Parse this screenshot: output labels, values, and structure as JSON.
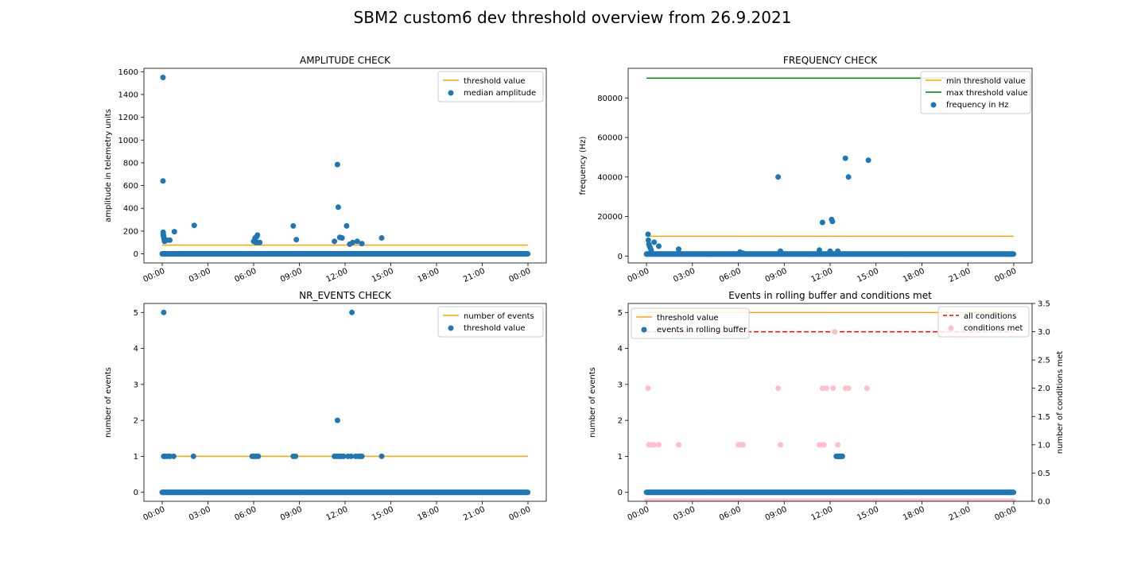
{
  "figure": {
    "title": "SBM2 custom6 dev threshold overview from 26.9.2021"
  },
  "colors": {
    "points": "#1f77b4",
    "threshold": "#ffa500",
    "max_threshold": "#008000",
    "all_conditions": "#ff0000",
    "conditions_met": "#ffc0cb"
  },
  "chart_data": [
    {
      "id": "amplitude",
      "type": "scatter",
      "title": "AMPLITUDE CHECK",
      "xlabel": "",
      "ylabel": "amplitude in telemetry units",
      "x_unit": "hours from 00:00 on 26.9.2021",
      "xlim": [
        -1.2,
        25.2
      ],
      "ylim": [
        -80,
        1630
      ],
      "yticks": [
        0,
        200,
        400,
        600,
        800,
        1000,
        1200,
        1400,
        1600
      ],
      "xticks": [
        "00:00",
        "03:00",
        "06:00",
        "09:00",
        "12:00",
        "15:00",
        "18:00",
        "21:00",
        "00:00"
      ],
      "legend": "upper right",
      "lines": [
        {
          "name": "threshold value",
          "color": "#ffa500",
          "x": [
            0,
            24
          ],
          "y": [
            77,
            77
          ]
        }
      ],
      "baseline": {
        "name": "median amplitude",
        "x": [
          0,
          24
        ],
        "y": 0
      },
      "series": [
        {
          "name": "median amplitude",
          "color": "#1f77b4",
          "x": [
            0.05,
            0.05,
            0.06,
            0.07,
            0.08,
            0.1,
            0.12,
            0.15,
            0.2,
            0.3,
            0.5,
            0.8,
            2.1,
            6.0,
            6.05,
            6.1,
            6.15,
            6.2,
            6.25,
            6.3,
            6.4,
            8.6,
            8.8,
            11.3,
            11.5,
            11.55,
            11.65,
            11.8,
            12.1,
            12.3,
            12.5,
            12.8,
            13.1,
            14.4
          ],
          "y": [
            1550,
            640,
            190,
            175,
            160,
            150,
            130,
            110,
            120,
            120,
            120,
            195,
            250,
            110,
            120,
            140,
            100,
            150,
            165,
            100,
            100,
            245,
            125,
            110,
            785,
            410,
            145,
            140,
            245,
            85,
            100,
            110,
            90,
            140
          ]
        }
      ]
    },
    {
      "id": "frequency",
      "type": "scatter",
      "title": "FREQUENCY CHECK",
      "xlabel": "",
      "ylabel": "frequency (Hz)",
      "x_unit": "hours from 00:00 on 26.9.2021",
      "xlim": [
        -1.2,
        25.2
      ],
      "ylim": [
        -3500,
        95000
      ],
      "yticks": [
        0,
        20000,
        40000,
        60000,
        80000
      ],
      "xticks": [
        "00:00",
        "03:00",
        "06:00",
        "09:00",
        "12:00",
        "15:00",
        "18:00",
        "21:00",
        "00:00"
      ],
      "legend": "upper right",
      "lines": [
        {
          "name": "min threshold value",
          "color": "#ffa500",
          "x": [
            0,
            24
          ],
          "y": [
            10000,
            10000
          ]
        },
        {
          "name": "max threshold value",
          "color": "#008000",
          "x": [
            0,
            24
          ],
          "y": [
            90000,
            90000
          ]
        }
      ],
      "baseline": {
        "name": "frequency in Hz",
        "x": [
          0,
          24
        ],
        "y": 1000
      },
      "series": [
        {
          "name": "frequency in Hz",
          "color": "#1f77b4",
          "x": [
            0.1,
            0.12,
            0.15,
            0.2,
            0.25,
            0.3,
            0.5,
            0.8,
            2.1,
            6.1,
            6.3,
            8.6,
            8.75,
            11.3,
            11.5,
            12.0,
            12.1,
            12.15,
            12.5,
            13.0,
            13.2,
            14.5
          ],
          "y": [
            11000,
            8000,
            6000,
            5000,
            4000,
            3000,
            7000,
            5000,
            3500,
            2000,
            1500,
            40000,
            2500,
            3000,
            17000,
            2500,
            18500,
            17500,
            2500,
            49500,
            40000,
            48500
          ]
        }
      ]
    },
    {
      "id": "nr_events",
      "type": "scatter",
      "title": "NR_EVENTS CHECK",
      "xlabel": "",
      "ylabel": "number of events",
      "x_unit": "hours from 00:00 on 26.9.2021",
      "xlim": [
        -1.2,
        25.2
      ],
      "ylim": [
        -0.25,
        5.25
      ],
      "yticks": [
        0,
        1,
        2,
        3,
        4,
        5
      ],
      "xticks": [
        "00:00",
        "03:00",
        "06:00",
        "09:00",
        "12:00",
        "15:00",
        "18:00",
        "21:00",
        "00:00"
      ],
      "legend": "upper right",
      "lines": [
        {
          "name": "number of events",
          "color": "#ffa500",
          "x": [
            0,
            24
          ],
          "y": [
            1,
            1
          ]
        }
      ],
      "baseline": {
        "name": "threshold value",
        "x": [
          0,
          24
        ],
        "y": 0
      },
      "series": [
        {
          "name": "threshold value",
          "color": "#1f77b4",
          "x": [
            0.1,
            0.1,
            0.2,
            0.35,
            0.5,
            0.75,
            2.05,
            5.9,
            6.0,
            6.15,
            6.3,
            8.6,
            8.75,
            11.3,
            11.45,
            11.5,
            11.6,
            11.65,
            11.75,
            11.9,
            12.2,
            12.4,
            12.45,
            12.7,
            12.9,
            13.0,
            13.1,
            14.4
          ],
          "y": [
            5,
            1,
            1,
            1,
            1,
            1,
            1,
            1,
            1,
            1,
            1,
            1,
            1,
            1,
            1,
            2,
            1,
            1,
            1,
            1,
            1,
            1,
            5,
            1,
            1,
            1,
            1,
            1
          ]
        }
      ]
    },
    {
      "id": "rolling_buffer",
      "type": "scatter",
      "title": "Events in rolling buffer and conditions met",
      "xlabel": "",
      "ylabel": "number of events",
      "ylabel_right": "number of conditions met",
      "x_unit": "hours from 00:00 on 26.9.2021",
      "xlim": [
        -1.2,
        25.2
      ],
      "ylim": [
        -0.25,
        5.25
      ],
      "yticks": [
        0,
        1,
        2,
        3,
        4,
        5
      ],
      "ylim_right": [
        0,
        3.5
      ],
      "yticks_right": [
        "0.0",
        "0.5",
        "1.0",
        "1.5",
        "2.0",
        "2.5",
        "3.0",
        "3.5"
      ],
      "xticks": [
        "00:00",
        "03:00",
        "06:00",
        "09:00",
        "12:00",
        "15:00",
        "18:00",
        "21:00",
        "00:00"
      ],
      "legend": "upper left",
      "legend_right": "upper right",
      "lines": [
        {
          "name": "threshold value",
          "color": "#ffa500",
          "x": [
            0,
            24
          ],
          "y": [
            5,
            5
          ]
        }
      ],
      "lines_right": [
        {
          "name": "all conditions",
          "color": "#ff0000",
          "dashed": true,
          "x": [
            0,
            24
          ],
          "y": [
            3,
            3
          ]
        }
      ],
      "baseline": {
        "name": "events in rolling buffer",
        "x": [
          0,
          24
        ],
        "y": 0
      },
      "baseline_right": {
        "name": "conditions met",
        "x": [
          0,
          24
        ],
        "y": 0
      },
      "series": [
        {
          "name": "events in rolling buffer",
          "color": "#1f77b4",
          "x": [
            12.4,
            12.45,
            12.5,
            12.55,
            12.6,
            12.65,
            12.7,
            12.75,
            12.8
          ],
          "y": [
            1,
            1,
            1,
            1,
            1,
            1,
            1,
            1,
            1
          ]
        }
      ],
      "series_right": [
        {
          "name": "conditions met",
          "color": "#ffc0cb",
          "x": [
            0.1,
            0.15,
            0.2,
            0.3,
            0.5,
            0.8,
            2.1,
            6.0,
            6.1,
            6.2,
            6.3,
            8.6,
            8.75,
            11.3,
            11.5,
            11.55,
            11.6,
            11.75,
            12.2,
            12.3,
            12.5,
            13.0,
            13.2,
            14.4
          ],
          "y": [
            2,
            1,
            1,
            1,
            1,
            1,
            1,
            1,
            1,
            1,
            1,
            2,
            1,
            1,
            2,
            1,
            1,
            2,
            2,
            3,
            1,
            2,
            2,
            2
          ]
        }
      ]
    }
  ]
}
